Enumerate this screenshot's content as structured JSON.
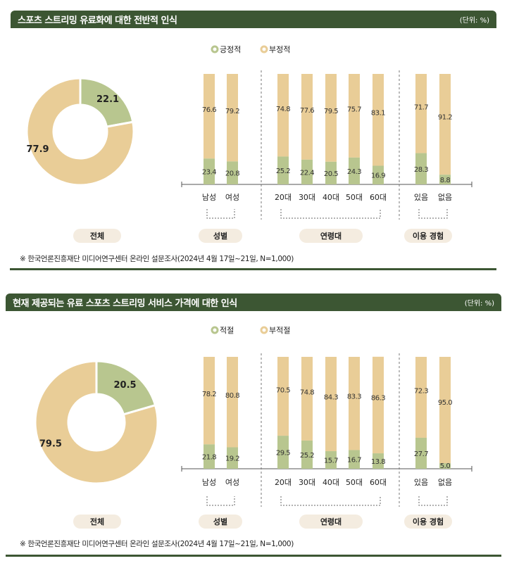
{
  "colors": {
    "header": "#3c5633",
    "positive": "#b8c68f",
    "negative": "#e9cd97",
    "pill": "#f4ece0"
  },
  "chart_data": [
    {
      "type": "bar",
      "title": "스포츠 스트리밍 유료화에 대한 전반적 인식",
      "unit": "(단위: %)",
      "legend": [
        "긍정적",
        "부정적"
      ],
      "donut": {
        "label": "전체",
        "values": [
          22.1,
          77.9
        ]
      },
      "groups": [
        {
          "label": "성별",
          "categories": [
            "남성",
            "여성"
          ]
        },
        {
          "label": "연령대",
          "categories": [
            "20대",
            "30대",
            "40대",
            "50대",
            "60대"
          ]
        },
        {
          "label": "이용 경험",
          "categories": [
            "있음",
            "없음"
          ]
        }
      ],
      "series": [
        {
          "name": "긍정적",
          "values": [
            23.4,
            20.8,
            25.2,
            22.4,
            20.5,
            24.3,
            16.9,
            28.3,
            8.8
          ]
        },
        {
          "name": "부정적",
          "values": [
            76.6,
            79.2,
            74.8,
            77.6,
            79.5,
            75.7,
            83.1,
            71.7,
            91.2
          ]
        }
      ],
      "stacked": true,
      "ylim": [
        0,
        100
      ],
      "footnote": "※ 한국언론진흥재단 미디어연구센터 온라인 설문조사(2024년 4월 17일~21일, N=1,000)"
    },
    {
      "type": "bar",
      "title": "현재 제공되는 유료 스포츠 스트리밍 서비스 가격에 대한 인식",
      "unit": "(단위: %)",
      "legend": [
        "적절",
        "부적절"
      ],
      "donut": {
        "label": "전체",
        "values": [
          20.5,
          79.5
        ]
      },
      "groups": [
        {
          "label": "성별",
          "categories": [
            "남성",
            "여성"
          ]
        },
        {
          "label": "연령대",
          "categories": [
            "20대",
            "30대",
            "40대",
            "50대",
            "60대"
          ]
        },
        {
          "label": "이용 경험",
          "categories": [
            "있음",
            "없음"
          ]
        }
      ],
      "series": [
        {
          "name": "적절",
          "values": [
            21.8,
            19.2,
            29.5,
            25.2,
            15.7,
            16.7,
            13.8,
            27.7,
            5.0
          ]
        },
        {
          "name": "부적절",
          "values": [
            78.2,
            80.8,
            70.5,
            74.8,
            84.3,
            83.3,
            86.3,
            72.3,
            95.0
          ]
        }
      ],
      "stacked": true,
      "ylim": [
        0,
        100
      ],
      "footnote": "※ 한국언론진흥재단 미디어연구센터 온라인 설문조사(2024년 4월 17일~21일, N=1,000)"
    }
  ]
}
